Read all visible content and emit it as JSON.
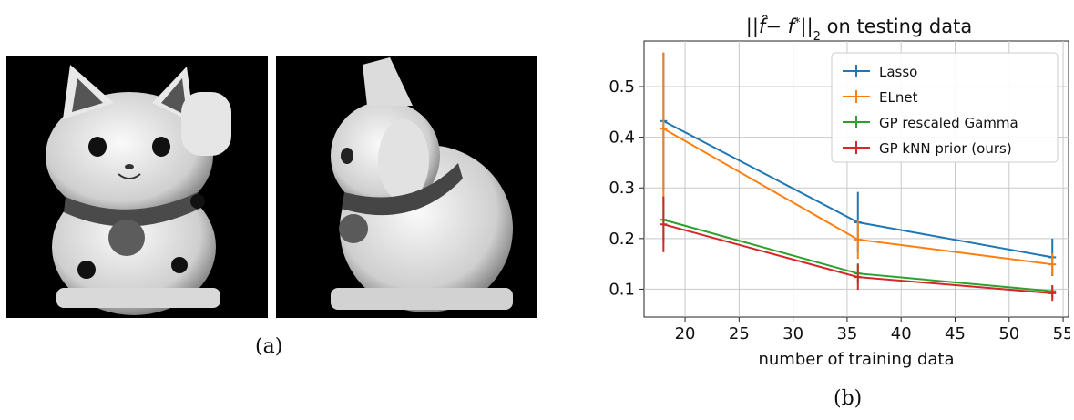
{
  "panel_a": {
    "caption": "(a)",
    "images": [
      {
        "description": "front-view"
      },
      {
        "description": "side-view"
      }
    ]
  },
  "panel_b": {
    "caption": "(b)"
  },
  "chart_data": {
    "type": "line",
    "title": "||f̂− f*||₂ on testing data",
    "xlabel": "number of training data",
    "ylabel": "",
    "x": [
      18,
      36,
      54
    ],
    "xlim": [
      16.2,
      55.5
    ],
    "ylim": [
      0.045,
      0.59
    ],
    "xticks": [
      20,
      25,
      30,
      35,
      40,
      45,
      50,
      55
    ],
    "yticks": [
      0.1,
      0.2,
      0.3,
      0.4,
      0.5
    ],
    "grid": true,
    "legend_position": "top-right",
    "series": [
      {
        "name": "Lasso",
        "color": "#1f77b4",
        "values": [
          0.432,
          0.232,
          0.163
        ],
        "err": [
          0.135,
          0.06,
          0.037
        ]
      },
      {
        "name": "ELnet",
        "color": "#ff7f0e",
        "values": [
          0.417,
          0.198,
          0.149
        ],
        "err": [
          0.15,
          0.038,
          0.022
        ]
      },
      {
        "name": "GP rescaled Gamma",
        "color": "#2ca02c",
        "values": [
          0.237,
          0.131,
          0.096
        ],
        "err": [
          0.045,
          0.02,
          0.012
        ]
      },
      {
        "name": "GP kNN prior (ours)",
        "color": "#d62728",
        "values": [
          0.228,
          0.124,
          0.092
        ],
        "err": [
          0.055,
          0.025,
          0.015
        ]
      }
    ]
  }
}
